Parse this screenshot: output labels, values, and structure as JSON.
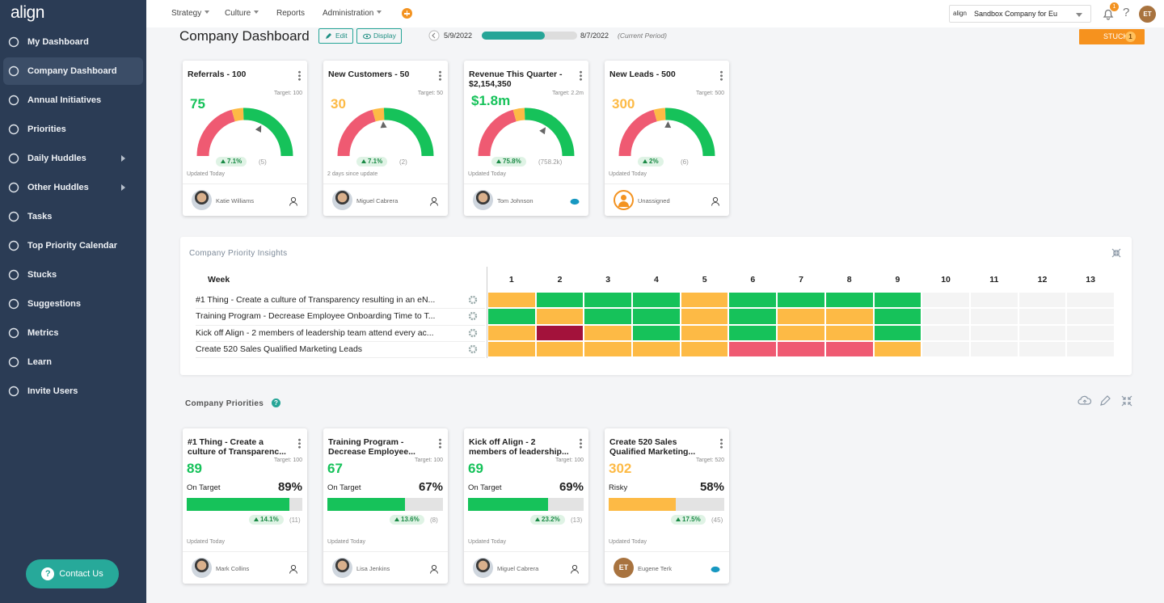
{
  "sidebar": {
    "logo": "align",
    "items": [
      {
        "label": "My Dashboard"
      },
      {
        "label": "Company Dashboard",
        "active": true
      },
      {
        "label": "Annual Initiatives"
      },
      {
        "label": "Priorities"
      },
      {
        "label": "Daily Huddles",
        "submenu": true
      },
      {
        "label": "Other Huddles",
        "submenu": true
      },
      {
        "label": "Tasks"
      },
      {
        "label": "Top Priority Calendar"
      },
      {
        "label": "Stucks"
      },
      {
        "label": "Suggestions"
      },
      {
        "label": "Metrics"
      },
      {
        "label": "Learn"
      },
      {
        "label": "Invite Users"
      }
    ],
    "contact": "Contact Us"
  },
  "topnav": {
    "items": [
      {
        "label": "Strategy",
        "dropdown": true
      },
      {
        "label": "Culture",
        "dropdown": true
      },
      {
        "label": "Reports",
        "dropdown": false
      },
      {
        "label": "Administration",
        "dropdown": true
      }
    ],
    "company_logo": "align",
    "company": "Sandbox Company for Eu",
    "notifications": "1",
    "avatar": "ET"
  },
  "header": {
    "title": "Company Dashboard",
    "edit": "Edit",
    "display": "Display",
    "start": "5/9/2022",
    "end": "8/7/2022",
    "period": "(Current Period)",
    "stucks": "STUCKS",
    "stucks_count": "1"
  },
  "colors": {
    "green": "#16c25a",
    "yellow": "#fdba45",
    "red": "#ef5a72",
    "darkred": "#a3123b"
  },
  "metrics": [
    {
      "title": "Referrals - 100",
      "target": "Target: 100",
      "value": "75",
      "status": "green",
      "change": "7.1%",
      "count": "(5)",
      "updated": "Updated Today",
      "owner": "Katie Williams",
      "owner_icon": "person"
    },
    {
      "title": "New Customers - 50",
      "target": "Target: 50",
      "value": "30",
      "status": "yellow",
      "change": "7.1%",
      "count": "(2)",
      "updated": "2 days since update",
      "owner": "Miguel Cabrera",
      "owner_icon": "person"
    },
    {
      "title": "Revenue This Quarter - $2,154,350",
      "target": "Target: 2.2m",
      "value": "$1.8m",
      "status": "green",
      "change": "75.8%",
      "count": "(758.2k)",
      "updated": "Updated Today",
      "owner": "Tom Johnson",
      "owner_icon": "salesforce"
    },
    {
      "title": "New Leads - 500",
      "target": "Target: 500",
      "value": "300",
      "status": "yellow",
      "change": "2%",
      "count": "(6)",
      "updated": "Updated Today",
      "owner": "Unassigned",
      "owner_icon": "person"
    }
  ],
  "insights": {
    "title": "Company Priority Insights",
    "week_label": "Week",
    "weeks": [
      1,
      2,
      3,
      4,
      5,
      6,
      7,
      8,
      9,
      10,
      11,
      12,
      13
    ],
    "rows": [
      {
        "name": "#1 Thing - Create a culture of Transparency resulting in an eN...",
        "statuses": [
          "yellow",
          "green",
          "green",
          "green",
          "yellow",
          "green",
          "green",
          "green",
          "green",
          null,
          null,
          null,
          null
        ]
      },
      {
        "name": "Training Program - Decrease Employee Onboarding Time to T...",
        "statuses": [
          "green",
          "yellow",
          "green",
          "green",
          "yellow",
          "green",
          "yellow",
          "yellow",
          "green",
          null,
          null,
          null,
          null
        ]
      },
      {
        "name": "Kick off Align - 2 members of leadership team attend every ac...",
        "statuses": [
          "yellow",
          "darkred",
          "yellow",
          "green",
          "yellow",
          "green",
          "yellow",
          "yellow",
          "green",
          null,
          null,
          null,
          null
        ]
      },
      {
        "name": "Create 520 Sales Qualified Marketing Leads",
        "statuses": [
          "yellow",
          "yellow",
          "yellow",
          "yellow",
          "yellow",
          "red",
          "red",
          "red",
          "yellow",
          null,
          null,
          null,
          null
        ]
      }
    ]
  },
  "priorities": {
    "title": "Company Priorities",
    "cards": [
      {
        "title": "#1 Thing - Create a culture of Transparenc...",
        "target": "Target: 100",
        "value": "89",
        "status": "green",
        "state": "On Target",
        "percent": {
          "value": 89,
          "label": "89%"
        },
        "change": "14.1%",
        "count": "(11)",
        "updated": "Updated Today",
        "owner": "Mark Collins",
        "owner_icon": "person"
      },
      {
        "title": "Training Program - Decrease Employee...",
        "target": "Target: 100",
        "value": "67",
        "status": "green",
        "state": "On Target",
        "percent": {
          "value": 67,
          "label": "67%"
        },
        "change": "13.6%",
        "count": "(8)",
        "updated": "Updated Today",
        "owner": "Lisa Jenkins",
        "owner_icon": "person"
      },
      {
        "title": "Kick off Align - 2 members of leadership...",
        "target": "Target: 100",
        "value": "69",
        "status": "green",
        "state": "On Target",
        "percent": {
          "value": 69,
          "label": "69%"
        },
        "change": "23.2%",
        "count": "(13)",
        "updated": "Updated Today",
        "owner": "Miguel Cabrera",
        "owner_icon": "person"
      },
      {
        "title": "Create 520 Sales Qualified Marketing...",
        "target": "Target: 520",
        "value": "302",
        "status": "yellow",
        "state": "Risky",
        "percent": {
          "value": 58,
          "label": "58%"
        },
        "change": "17.5%",
        "count": "(45)",
        "updated": "Updated Today",
        "owner": "Eugene Terk",
        "owner_initials": "ET",
        "owner_icon": "salesforce"
      }
    ]
  }
}
